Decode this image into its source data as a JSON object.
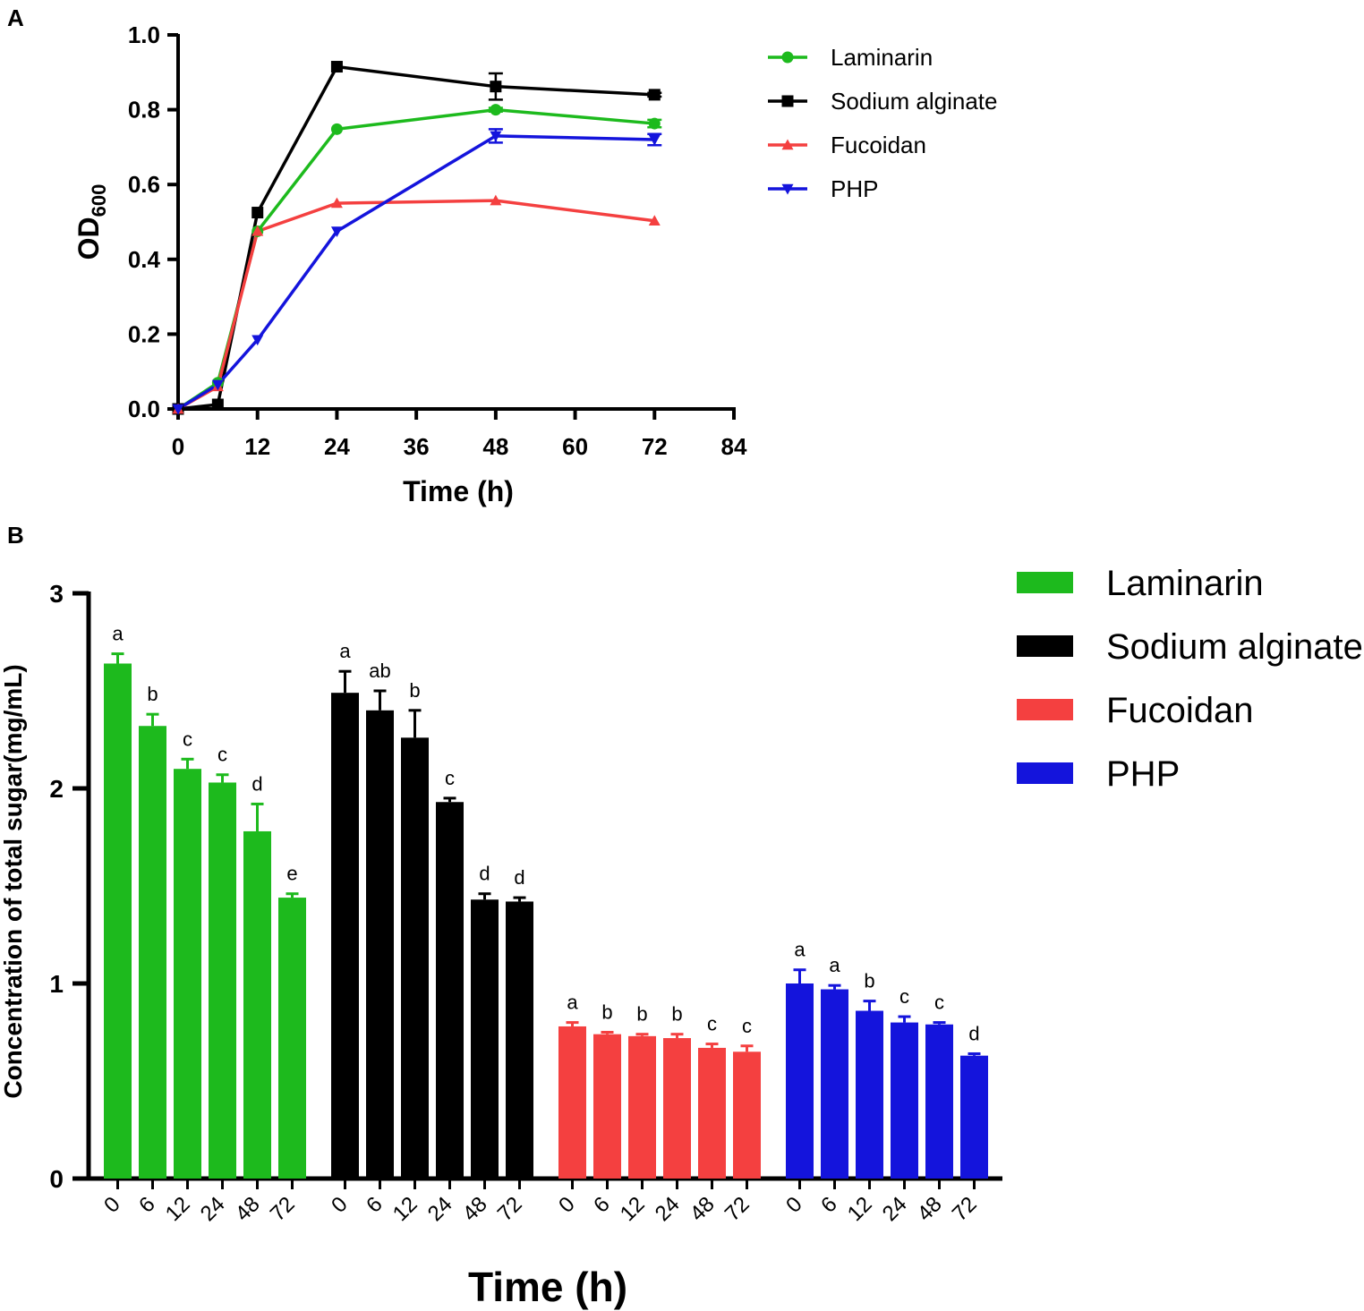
{
  "panels": {
    "a_label": "A",
    "b_label": "B"
  },
  "colors": {
    "Laminarin": "#1dba1d",
    "Sodium alginate": "#000000",
    "Fucoidan": "#f44040",
    "PHP": "#1414dc"
  },
  "chart_data": [
    {
      "type": "line",
      "panel": "A",
      "xlabel": "Time (h)",
      "ylabel_main": "OD",
      "ylabel_sub": "600",
      "xlim": [
        0,
        84
      ],
      "ylim": [
        0,
        1.0
      ],
      "xticks": [
        "0",
        "12",
        "24",
        "36",
        "48",
        "60",
        "72",
        "84"
      ],
      "yticks": [
        "0.0",
        "0.2",
        "0.4",
        "0.6",
        "0.8",
        "1.0"
      ],
      "legend_position": "right",
      "x": [
        0,
        6,
        12,
        24,
        48,
        72
      ],
      "series": [
        {
          "name": "Laminarin",
          "marker": "circle",
          "values": [
            0.0,
            0.07,
            0.475,
            0.748,
            0.8,
            0.763
          ],
          "errors": [
            0,
            0,
            0,
            0,
            0.005,
            0.01
          ]
        },
        {
          "name": "Sodium alginate",
          "marker": "square",
          "values": [
            0.0,
            0.012,
            0.525,
            0.915,
            0.862,
            0.84
          ],
          "errors": [
            0,
            0,
            0,
            0,
            0.035,
            0.005
          ]
        },
        {
          "name": "Fucoidan",
          "marker": "triangle-up",
          "values": [
            0.0,
            0.06,
            0.475,
            0.55,
            0.557,
            0.503
          ],
          "errors": [
            0,
            0,
            0,
            0,
            0,
            0
          ]
        },
        {
          "name": "PHP",
          "marker": "triangle-down",
          "values": [
            0.0,
            0.065,
            0.185,
            0.475,
            0.73,
            0.72
          ],
          "errors": [
            0,
            0,
            0,
            0,
            0.018,
            0.015
          ]
        }
      ]
    },
    {
      "type": "bar",
      "panel": "B",
      "xlabel": "Time (h)",
      "ylabel": "Concentration of total sugar(mg/mL)",
      "ylim": [
        0,
        3
      ],
      "yticks": [
        "0",
        "1",
        "2",
        "3"
      ],
      "legend_position": "top-right",
      "categories": [
        "0",
        "6",
        "12",
        "24",
        "48",
        "72"
      ],
      "series": [
        {
          "name": "Laminarin",
          "values": [
            2.64,
            2.32,
            2.1,
            2.03,
            1.78,
            1.44
          ],
          "errors": [
            0.05,
            0.06,
            0.05,
            0.04,
            0.14,
            0.02
          ],
          "labels": [
            "a",
            "b",
            "c",
            "c",
            "d",
            "e"
          ]
        },
        {
          "name": "Sodium alginate",
          "values": [
            2.49,
            2.4,
            2.26,
            1.93,
            1.43,
            1.42
          ],
          "errors": [
            0.11,
            0.1,
            0.14,
            0.02,
            0.03,
            0.02
          ],
          "labels": [
            "a",
            "ab",
            "b",
            "c",
            "d",
            "d"
          ]
        },
        {
          "name": "Fucoidan",
          "values": [
            0.78,
            0.74,
            0.73,
            0.72,
            0.67,
            0.65
          ],
          "errors": [
            0.02,
            0.01,
            0.01,
            0.02,
            0.02,
            0.03
          ],
          "labels": [
            "a",
            "b",
            "b",
            "b",
            "c",
            "c"
          ]
        },
        {
          "name": "PHP",
          "values": [
            1.0,
            0.97,
            0.86,
            0.8,
            0.79,
            0.63
          ],
          "errors": [
            0.07,
            0.02,
            0.05,
            0.03,
            0.01,
            0.01
          ],
          "labels": [
            "a",
            "a",
            "b",
            "c",
            "c",
            "d"
          ]
        }
      ]
    }
  ]
}
